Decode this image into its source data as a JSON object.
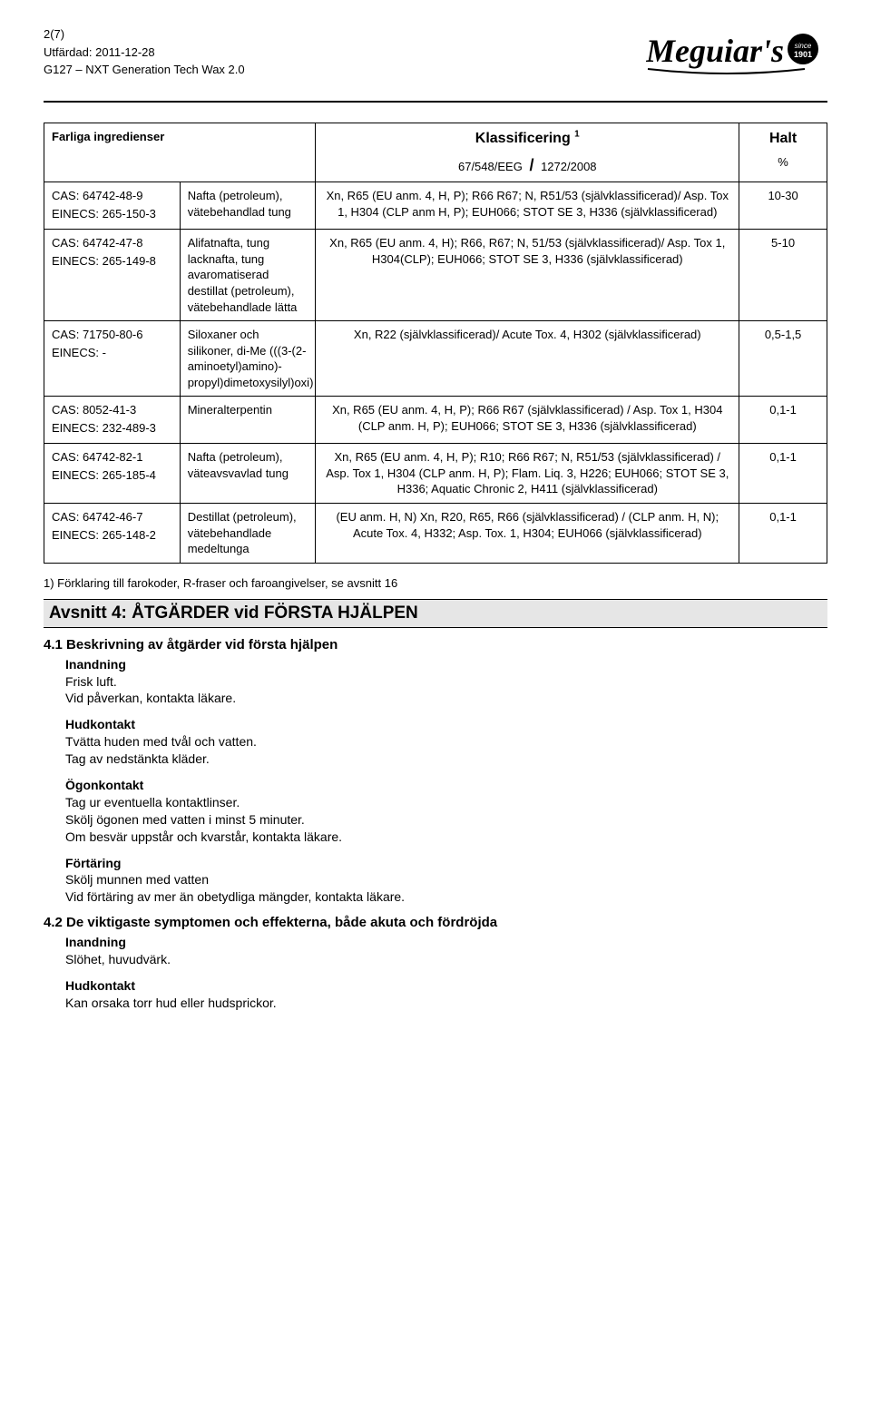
{
  "header": {
    "page_of": "2(7)",
    "issued_label": "Utfärdad:",
    "issued_date": "2011-12-28",
    "product_code": "G127 – NXT Generation Tech Wax 2.0",
    "logo_text": "Meguiar's",
    "logo_since": "since 1901"
  },
  "table": {
    "col_headers": {
      "c1": "Farliga ingredienser",
      "c2": "",
      "c3_title": "Klassificering",
      "c3_sup": "1",
      "c3_sub_left": "67/548/EEG",
      "c3_sub_right": "1272/2008",
      "c4_title": "Halt",
      "c4_sub": "%"
    },
    "rows": [
      {
        "id_lines": [
          "CAS: 64742-48-9",
          "EINECS: 265-150-3"
        ],
        "name": "Nafta (petroleum), vätebehandlad tung",
        "classif": "Xn, R65 (EU anm. 4, H, P); R66 R67; N, R51/53 (självklassificerad)/ Asp. Tox 1, H304 (CLP anm H, P); EUH066; STOT SE 3, H336 (självklassificerad)",
        "halt": "10-30"
      },
      {
        "id_lines": [
          "CAS: 64742-47-8",
          "EINECS: 265-149-8"
        ],
        "name": "Alifatnafta, tung lacknafta, tung avaromatiserad destillat (petroleum), vätebehandlade lätta",
        "classif": "Xn, R65 (EU anm. 4, H); R66, R67; N, 51/53 (självklassificerad)/ Asp. Tox 1, H304(CLP); EUH066; STOT SE 3, H336 (självklassificerad)",
        "halt": "5-10"
      },
      {
        "id_lines": [
          "CAS: 71750-80-6",
          "EINECS: -"
        ],
        "name": "Siloxaner och silikoner, di-Me (((3-(2-aminoetyl)amino)-propyl)dimetoxysilyl)oxi)",
        "classif": "Xn, R22 (självklassificerad)/ Acute Tox. 4, H302 (självklassificerad)",
        "halt": "0,5-1,5"
      },
      {
        "id_lines": [
          "CAS: 8052-41-3",
          "EINECS: 232-489-3"
        ],
        "name": "Mineralterpentin",
        "classif": "Xn, R65 (EU anm. 4, H, P); R66 R67 (självklassificerad) / Asp. Tox 1, H304 (CLP anm. H, P); EUH066; STOT SE 3, H336 (självklassificerad)",
        "halt": "0,1-1"
      },
      {
        "id_lines": [
          "CAS: 64742-82-1",
          "EINECS: 265-185-4"
        ],
        "name": "Nafta (petroleum), väteavsvavlad tung",
        "classif": "Xn, R65 (EU anm. 4, H, P); R10; R66 R67; N, R51/53 (självklassificerad) / Asp. Tox 1, H304 (CLP anm. H, P); Flam. Liq. 3, H226; EUH066; STOT SE 3, H336; Aquatic Chronic 2, H411 (självklassificerad)",
        "halt": "0,1-1"
      },
      {
        "id_lines": [
          "CAS: 64742-46-7",
          "EINECS: 265-148-2"
        ],
        "name": "Destillat (petroleum), vätebehandlade medeltunga",
        "classif": "(EU anm. H, N) Xn, R20, R65, R66 (självklassificerad) / (CLP anm. H, N); Acute Tox. 4, H332; Asp. Tox. 1, H304; EUH066 (självklassificerad)",
        "halt": "0,1-1"
      }
    ]
  },
  "footnote": "1) Förklaring till farokoder, R-fraser och faroangivelser, se avsnitt 16",
  "section4": {
    "title": "Avsnitt 4: ÅTGÄRDER vid FÖRSTA HJÄLPEN",
    "s41": {
      "heading": "4.1 Beskrivning av åtgärder vid första hjälpen",
      "inandning_label": "Inandning",
      "inandning_lines": [
        "Frisk luft.",
        "Vid påverkan, kontakta läkare."
      ],
      "hudkontakt_label": "Hudkontakt",
      "hudkontakt_lines": [
        "Tvätta huden med tvål och vatten.",
        "Tag av nedstänkta kläder."
      ],
      "ogonkontakt_label": "Ögonkontakt",
      "ogonkontakt_lines": [
        "Tag ur eventuella kontaktlinser.",
        "Skölj ögonen med vatten i minst 5 minuter.",
        "Om besvär uppstår och kvarstår, kontakta läkare."
      ],
      "fortaring_label": "Förtäring",
      "fortaring_lines": [
        "Skölj munnen med vatten",
        "Vid förtäring av mer än obetydliga mängder, kontakta läkare."
      ]
    },
    "s42": {
      "heading": "4.2 De viktigaste symptomen och effekterna, både akuta och fördröjda",
      "inandning_label": "Inandning",
      "inandning_lines": [
        "Slöhet, huvudvärk."
      ],
      "hudkontakt_label": "Hudkontakt",
      "hudkontakt_lines": [
        "Kan orsaka torr hud eller hudsprickor."
      ]
    }
  }
}
